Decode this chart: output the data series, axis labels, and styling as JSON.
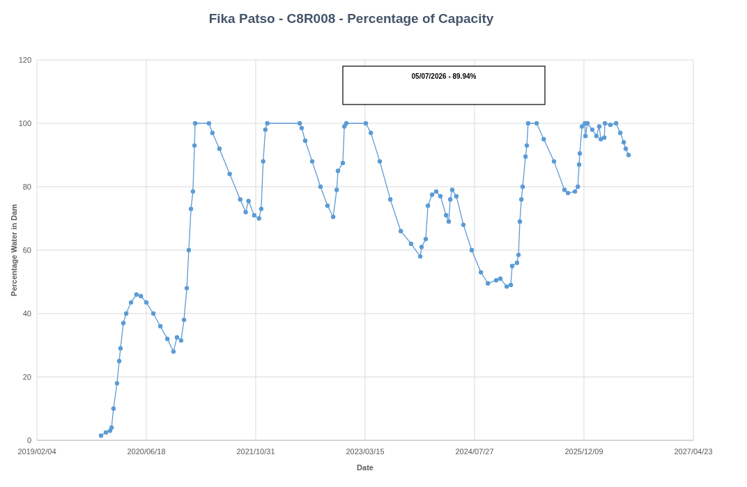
{
  "chart_data": {
    "type": "line",
    "title": "Fika Patso - C8R008 - Percentage of Capacity",
    "xlabel": "Date",
    "ylabel": "Percentage Water in Dam",
    "annotations": [
      "05/07/2026 - 89.94%"
    ],
    "x": [
      "2019-11-24",
      "2019-12-16",
      "2020-01-04",
      "2020-01-11",
      "2020-01-20",
      "2020-02-05",
      "2020-02-15",
      "2020-02-21",
      "2020-03-05",
      "2020-03-18",
      "2020-04-09",
      "2020-05-04",
      "2020-05-24",
      "2020-06-18",
      "2020-07-20",
      "2020-08-21",
      "2020-09-22",
      "2020-10-20",
      "2020-11-05",
      "2020-11-24",
      "2020-12-07",
      "2020-12-20",
      "2020-12-29",
      "2021-01-08",
      "2021-01-17",
      "2021-01-24",
      "2021-01-27",
      "2021-03-31",
      "2021-04-16",
      "2021-05-18",
      "2021-07-04",
      "2021-08-21",
      "2021-09-15",
      "2021-09-28",
      "2021-10-24",
      "2021-11-15",
      "2021-11-25",
      "2021-12-04",
      "2021-12-14",
      "2021-12-23",
      "2022-05-20",
      "2022-05-29",
      "2022-06-14",
      "2022-07-16",
      "2022-08-23",
      "2022-09-24",
      "2022-10-20",
      "2022-11-05",
      "2022-11-11",
      "2022-12-03",
      "2022-12-10",
      "2022-12-19",
      "2023-03-18",
      "2023-04-10",
      "2023-05-21",
      "2023-07-08",
      "2023-08-25",
      "2023-10-11",
      "2023-11-22",
      "2023-11-28",
      "2023-12-17",
      "2023-12-27",
      "2024-01-15",
      "2024-02-03",
      "2024-02-22",
      "2024-03-19",
      "2024-03-31",
      "2024-04-07",
      "2024-04-16",
      "2024-05-05",
      "2024-06-06",
      "2024-07-14",
      "2024-08-25",
      "2024-09-26",
      "2024-11-03",
      "2024-11-22",
      "2024-12-21",
      "2025-01-09",
      "2025-01-15",
      "2025-02-06",
      "2025-02-13",
      "2025-02-19",
      "2025-02-26",
      "2025-03-04",
      "2025-03-17",
      "2025-03-23",
      "2025-03-29",
      "2025-05-07",
      "2025-06-08",
      "2025-07-25",
      "2025-09-11",
      "2025-09-27",
      "2025-10-29",
      "2025-11-11",
      "2025-11-17",
      "2025-11-20",
      "2025-11-30",
      "2025-12-13",
      "2025-12-16",
      "2025-12-25",
      "2026-01-16",
      "2026-02-04",
      "2026-02-17",
      "2026-02-24",
      "2026-03-12",
      "2026-03-15",
      "2026-04-09",
      "2026-05-05",
      "2026-05-24",
      "2026-06-09",
      "2026-06-18",
      "2026-07-01"
    ],
    "series": [
      {
        "color": "#5b9bd5",
        "values": [
          1.5,
          2.5,
          3,
          4,
          10,
          18,
          25,
          29,
          37,
          40,
          43.5,
          46,
          45.5,
          43.5,
          40,
          36,
          32,
          28,
          32.5,
          31.5,
          38,
          48,
          60,
          73,
          78.5,
          93,
          100,
          100,
          97,
          92,
          84,
          76,
          72,
          75.5,
          71,
          70,
          73,
          88,
          98,
          100,
          100,
          98.5,
          94.5,
          88,
          80,
          74,
          70.5,
          79,
          85,
          87.5,
          99,
          100,
          100,
          97,
          88,
          76,
          66,
          62,
          58,
          61,
          63.5,
          74,
          77.5,
          78.5,
          77,
          71,
          69,
          76,
          79,
          77,
          68,
          60,
          53,
          49.5,
          50.5,
          51,
          48.5,
          49,
          55,
          56,
          58.5,
          69,
          76,
          80,
          89.5,
          93,
          100,
          100,
          95,
          88,
          79,
          78,
          78.5,
          80,
          87,
          90.5,
          99,
          100,
          96,
          100,
          98,
          96,
          99,
          95,
          95.5,
          100,
          99.5,
          100,
          97,
          94,
          92,
          90
        ]
      }
    ],
    "xlim": [
      "2019-02-04",
      "2027-04-23"
    ],
    "xticks": [
      {
        "value": "2019-02-04",
        "label": "2019/02/04"
      },
      {
        "value": "2020-06-18",
        "label": "2020/06/18"
      },
      {
        "value": "2021-10-31",
        "label": "2021/10/31"
      },
      {
        "value": "2023-03-15",
        "label": "2023/03/15"
      },
      {
        "value": "2024-07-27",
        "label": "2024/07/27"
      },
      {
        "value": "2025-12-09",
        "label": "2025/12/09"
      },
      {
        "value": "2027-04-23",
        "label": "2027/04/23"
      }
    ],
    "ylim": [
      0,
      120
    ],
    "yticks": [
      0,
      20,
      40,
      60,
      80,
      100,
      120
    ],
    "grid": true,
    "marker": "circle",
    "line_style": "solid"
  }
}
